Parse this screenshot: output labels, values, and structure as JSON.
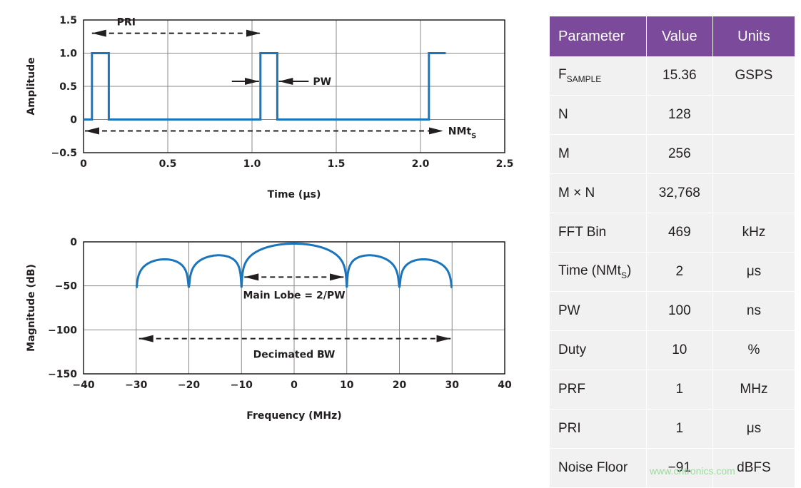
{
  "chart_data": [
    {
      "type": "line",
      "title": "",
      "xlabel": "Time (μs)",
      "ylabel": "Amplitude",
      "xlim": [
        0,
        2.5
      ],
      "ylim": [
        -0.5,
        1.5
      ],
      "x_ticks": [
        "0",
        "0.5",
        "1.0",
        "1.5",
        "2.0",
        "2.5"
      ],
      "y_ticks": [
        "1.5",
        "1.0",
        "0.5",
        "0",
        "−0.5"
      ],
      "grid": true,
      "series": [
        {
          "color": "#1a75bc",
          "points": [
            [
              0,
              0
            ],
            [
              0.05,
              0
            ],
            [
              0.05,
              1
            ],
            [
              0.15,
              1
            ],
            [
              0.15,
              0
            ],
            [
              1.05,
              0
            ],
            [
              1.05,
              1
            ],
            [
              1.15,
              1
            ],
            [
              1.15,
              0
            ],
            [
              2.05,
              0
            ],
            [
              2.05,
              1
            ],
            [
              2.15,
              1
            ]
          ]
        }
      ],
      "annotations": {
        "pri": {
          "label": "PRI",
          "x_from": 0.05,
          "x_to": 1.05,
          "y": 1.3
        },
        "pw": {
          "label": "PW",
          "x_from": 1.05,
          "x_to": 1.15,
          "y": 0.5
        },
        "nmts": {
          "label": "NMt",
          "label_sub": "S",
          "x_from": 0.05,
          "x_to": 2.05,
          "y": -0.15
        }
      }
    },
    {
      "type": "line",
      "title": "",
      "xlabel": "Frequency (MHz)",
      "ylabel": "Magnitude (dB)",
      "xlim": [
        -40,
        40
      ],
      "ylim": [
        -150,
        0
      ],
      "x_ticks": [
        "−40",
        "−30",
        "−20",
        "−10",
        "0",
        "10",
        "20",
        "30",
        "40"
      ],
      "y_ticks": [
        "0",
        "−50",
        "−100",
        "−150"
      ],
      "grid": true,
      "series": [
        {
          "color": "#1a75bc",
          "shape": "sinc_db",
          "main_lobe_width_mhz": 20,
          "peak_db": -2,
          "null_db": -50,
          "x_range": [
            -30,
            30
          ]
        }
      ],
      "annotations": {
        "main_lobe": {
          "label": "Main Lobe = 2/PW",
          "x_from": -10,
          "x_to": 10,
          "y": -40
        },
        "decimated_bw": {
          "label": "Decimated BW",
          "x_from": -30,
          "x_to": 30,
          "y": -110
        }
      }
    }
  ],
  "table": {
    "headers": [
      "Parameter",
      "Value",
      "Units"
    ],
    "rows": [
      {
        "param": "F",
        "param_sub": "SAMPLE",
        "value": "15.36",
        "units": "GSPS"
      },
      {
        "param": "N",
        "value": "128",
        "units": ""
      },
      {
        "param": "M",
        "value": "256",
        "units": ""
      },
      {
        "param": "M × N",
        "value": "32,768",
        "units": ""
      },
      {
        "param": "FFT Bin",
        "value": "469",
        "units": "kHz"
      },
      {
        "param": "Time (NMt",
        "param_sub": "S",
        "param_suffix": ")",
        "value": "2",
        "units": "μs"
      },
      {
        "param": "PW",
        "value": "100",
        "units": "ns"
      },
      {
        "param": "Duty",
        "value": "10",
        "units": "%"
      },
      {
        "param": "PRF",
        "value": "1",
        "units": "MHz"
      },
      {
        "param": "PRI",
        "value": "1",
        "units": "μs"
      },
      {
        "param": "Noise Floor",
        "value": "−91",
        "units": "dBFS"
      }
    ]
  },
  "watermark": "www.cntronics.com",
  "colors": {
    "trace": "#1a75bc",
    "header_bg": "#7b4a9a",
    "cell_bg": "#f1f1f1"
  }
}
